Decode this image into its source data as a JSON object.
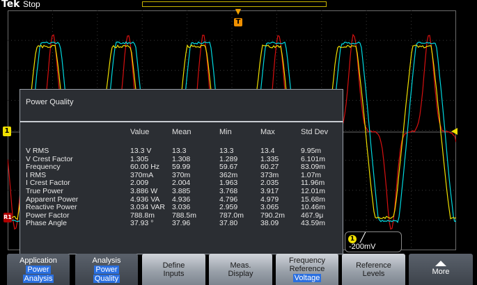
{
  "status": {
    "brand": "Tek",
    "run_state": "Stop"
  },
  "markers": {
    "ch1": "1",
    "ref": "R1",
    "trigger_top": "T"
  },
  "panel": {
    "title": "Power Quality",
    "headers": [
      "Value",
      "Mean",
      "Min",
      "Max",
      "Std Dev"
    ],
    "rows": [
      {
        "name": "V RMS",
        "value": "13.3 V",
        "mean": "13.3",
        "min": "13.3",
        "max": "13.4",
        "std": "9.95m"
      },
      {
        "name": "V Crest Factor",
        "value": "1.305",
        "mean": "1.308",
        "min": "1.289",
        "max": "1.335",
        "std": "6.101m"
      },
      {
        "name": "Frequency",
        "value": "60.00 Hz",
        "mean": "59.99",
        "min": "59.67",
        "max": "60.27",
        "std": "83.09m"
      },
      {
        "name": "I RMS",
        "value": "370mA",
        "mean": "370m",
        "min": "362m",
        "max": "373m",
        "std": "1.07m"
      },
      {
        "name": "I Crest Factor",
        "value": "2.009",
        "mean": "2.004",
        "min": "1.963",
        "max": "2.035",
        "std": "11.96m"
      },
      {
        "name": "True Power",
        "value": "3.886 W",
        "mean": "3.885",
        "min": "3.768",
        "max": "3.917",
        "std": "12.01m"
      },
      {
        "name": "Apparent Power",
        "value": "4.936 VA",
        "mean": "4.936",
        "min": "4.796",
        "max": "4.979",
        "std": "15.68m"
      },
      {
        "name": "Reactive Power",
        "value": "3.034 VAR",
        "mean": "3.036",
        "min": "2.959",
        "max": "3.065",
        "std": "10.46m"
      },
      {
        "name": "Power Factor",
        "value": "788.8m",
        "mean": "788.5m",
        "min": "787.0m",
        "max": "790.2m",
        "std": "467.9μ"
      },
      {
        "name": "Phase Angle",
        "value": "37.93 °",
        "mean": "37.96",
        "min": "37.80",
        "max": "38.09",
        "std": "43.59m"
      }
    ]
  },
  "ch1_readout": {
    "badge": "1",
    "slope_icon": "rising-edge-icon",
    "level": "-200mV"
  },
  "menu": {
    "application": {
      "label": "Application",
      "sel1": "Power",
      "sel2": "Analysis"
    },
    "analysis": {
      "label": "Analysis",
      "sel1": "Power",
      "sel2": "Quality"
    },
    "define_inputs": {
      "line1": "Define",
      "line2": "Inputs"
    },
    "meas_display": {
      "line1": "Meas.",
      "line2": "Display"
    },
    "freq_ref": {
      "line1": "Frequency",
      "line2": "Reference",
      "sel": "Voltage"
    },
    "ref_levels": {
      "line1": "Reference",
      "line2": "Levels"
    },
    "more": {
      "label": "More",
      "icon": "up-arrow-icon"
    }
  },
  "colors": {
    "ch1": "#f0e000",
    "ch2": "#00d8e0",
    "ref": "#d81010",
    "highlight": "#2a6fe0"
  }
}
